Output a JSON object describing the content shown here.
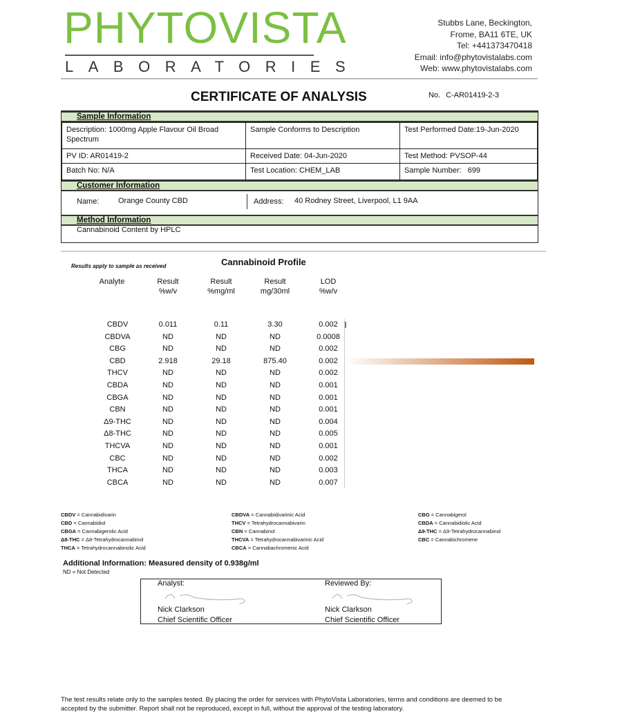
{
  "logo": {
    "name": "PHYTOVISTA",
    "sub": "LABORATORIES",
    "color": "#7cc043"
  },
  "address": [
    "Stubbs Lane, Beckington,",
    "Frome, BA11 6TE, UK",
    "Tel: +441373470418",
    "Email: info@phytovistalabs.com",
    "Web: www.phytovistalabs.com"
  ],
  "title": "CERTIFICATE OF ANALYSIS",
  "cert_no_label": "No.",
  "cert_no": "C-AR01419-2-3",
  "sample": {
    "heading": "Sample Information",
    "cells": [
      [
        "Description: 1000mg Apple Flavour Oil Broad Spectrum",
        "Sample Conforms to Description",
        "Test Performed Date:19-Jun-2020"
      ],
      [
        "PV ID: AR01419-2",
        "Received Date: 04-Jun-2020",
        "Test Method: PVSOP-44"
      ],
      [
        "Batch No: N/A",
        "Test Location: CHEM_LAB",
        "Sample Number:   699"
      ]
    ]
  },
  "customer": {
    "heading": "Customer Information",
    "name_label": "Name:",
    "name": "Orange County CBD",
    "address_label": "Address:",
    "address": "40 Rodney Street, Liverpool, L1 9AA"
  },
  "method": {
    "heading": "Method Information",
    "text": "Cannabinoid Content by HPLC"
  },
  "results_note": "Results apply to sample as received",
  "profile_title": "Cannabinoid Profile",
  "columns": [
    "Analyte",
    "Result\n%w/v",
    "Result\n%mg/ml",
    "Result\nmg/30ml",
    "LOD\n%w/v"
  ],
  "rows": [
    [
      "CBDV",
      "0.011",
      "0.11",
      "3.30",
      "0.002"
    ],
    [
      "CBDVA",
      "ND",
      "ND",
      "ND",
      "0.0008"
    ],
    [
      "CBG",
      "ND",
      "ND",
      "ND",
      "0.002"
    ],
    [
      "CBD",
      "2.918",
      "29.18",
      "875.40",
      "0.002"
    ],
    [
      "THCV",
      "ND",
      "ND",
      "ND",
      "0.002"
    ],
    [
      "CBDA",
      "ND",
      "ND",
      "ND",
      "0.001"
    ],
    [
      "CBGA",
      "ND",
      "ND",
      "ND",
      "0.001"
    ],
    [
      "CBN",
      "ND",
      "ND",
      "ND",
      "0.001"
    ],
    [
      "Δ9-THC",
      "ND",
      "ND",
      "ND",
      "0.004"
    ],
    [
      "Δ8-THC",
      "ND",
      "ND",
      "ND",
      "0.005"
    ],
    [
      "THCVA",
      "ND",
      "ND",
      "ND",
      "0.001"
    ],
    [
      "CBC",
      "ND",
      "ND",
      "ND",
      "0.002"
    ],
    [
      "THCA",
      "ND",
      "ND",
      "ND",
      "0.003"
    ],
    [
      "CBCA",
      "ND",
      "ND",
      "ND",
      "0.007"
    ]
  ],
  "bar_color": "#c05a10",
  "legend": [
    [
      [
        "CBDV",
        "Cannabidivarin"
      ],
      [
        "CBD",
        "Cannabidiol"
      ],
      [
        "CBGA",
        "Cannabigerolic Acid"
      ],
      [
        "Δ8-THC",
        "Δ8-Tetrahydrocannabinol"
      ],
      [
        "THCA",
        "Tetrahydrocannabinolic Acid"
      ]
    ],
    [
      [
        "CBDVA",
        "Cannabidivarinic Acid"
      ],
      [
        "THCV",
        "Tetrahydrocannabivarin"
      ],
      [
        "CBN",
        "Cannabinol"
      ],
      [
        "THCVA",
        "Tetrahydrocannabivarinic Acid"
      ],
      [
        "CBCA",
        "Cannabachromenic Acid"
      ]
    ],
    [
      [
        "CBG",
        "Cannabigerol"
      ],
      [
        "CBDA",
        "Cannabidiolic Acid"
      ],
      [
        "Δ9-THC",
        "Δ9-Tetrahydrocannabinol"
      ],
      [
        "CBC",
        "Cannabichromene"
      ]
    ]
  ],
  "additional": "Additional Information: Measured density of 0.938g/ml",
  "nd_note": "ND = Not Detected",
  "analyst": {
    "label": "Analyst:",
    "name": "Nick Clarkson",
    "role": "Chief Scientific Officer"
  },
  "reviewer": {
    "label": "Reviewed By:",
    "name": "Nick Clarkson",
    "role": "Chief Scientific Officer"
  },
  "footer": "The test results relate only to the samples tested.  By placing the order for services with PhytoVista Laboratories, terms and conditions are deemed to be accepted by the submitter. Report shall not be reproduced, except in full, without the approval of the testing laboratory."
}
